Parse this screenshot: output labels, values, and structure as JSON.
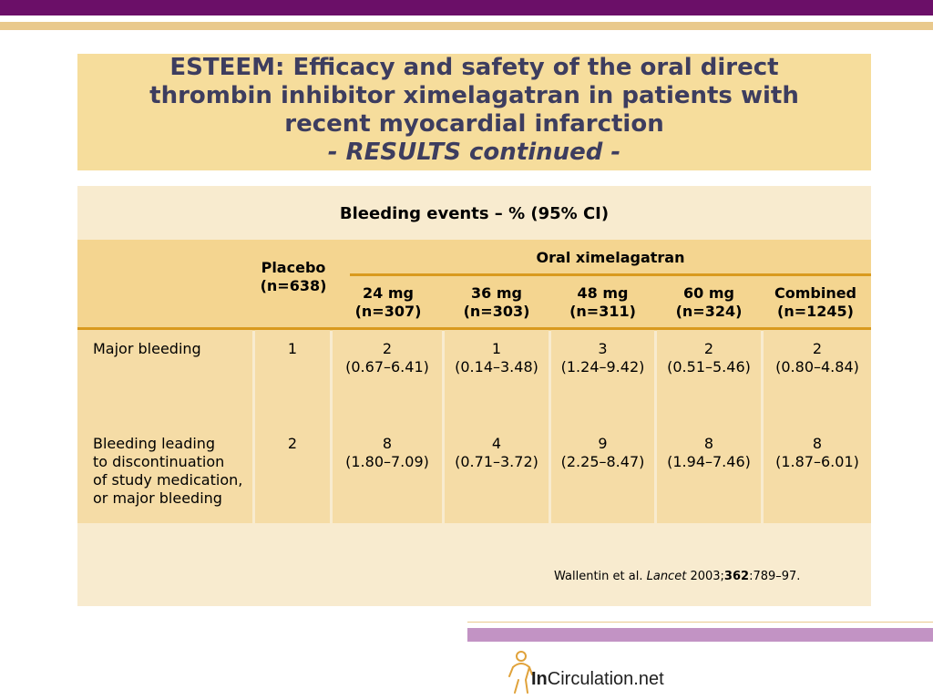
{
  "slide": {
    "title_line1": "ESTEEM: Efficacy and safety of the oral direct",
    "title_line2": "thrombin inhibitor ximelagatran in patients with",
    "title_line3": "recent myocardial infarction",
    "subtitle": "- RESULTS continued -"
  },
  "table": {
    "caption": "Bleeding events – % (95% CI)",
    "placebo_header": "Placebo\n(n=638)",
    "group_header": "Oral ximelagatran",
    "dose_headers": [
      "24 mg\n(n=307)",
      "36 mg\n(n=303)",
      "48 mg\n(n=311)",
      "60 mg\n(n=324)",
      "Combined\n(n=1245)"
    ],
    "rows": [
      {
        "label": "Major bleeding",
        "placebo": "1",
        "values": [
          "2\n(0.67–6.41)",
          "1\n(0.14–3.48)",
          "3\n(1.24–9.42)",
          "2\n(0.51–5.46)",
          "2\n(0.80–4.84)"
        ]
      },
      {
        "label": "Bleeding leading\nto discontinuation\nof study medication,\nor major bleeding",
        "placebo": "2",
        "values": [
          "8\n(1.80–7.09)",
          "4\n(0.71–3.72)",
          "9\n(2.25–8.47)",
          "8\n(1.94–7.46)",
          "8\n(1.87–6.01)"
        ]
      }
    ]
  },
  "citation": {
    "authors": "Wallentin et al.",
    "journal": "Lancet",
    "year": "2003;",
    "volume": "362",
    "pages": ":789–97."
  },
  "logo": {
    "bold": "In",
    "rest": "Circulation.net"
  },
  "colors": {
    "top_bar": "#6b0f68",
    "gold": "#e9c98d",
    "title_bg": "#f6dd9c",
    "title_text": "#3d3d5f",
    "header_rule": "#d99a1e",
    "accent_purple": "#c293c4"
  }
}
